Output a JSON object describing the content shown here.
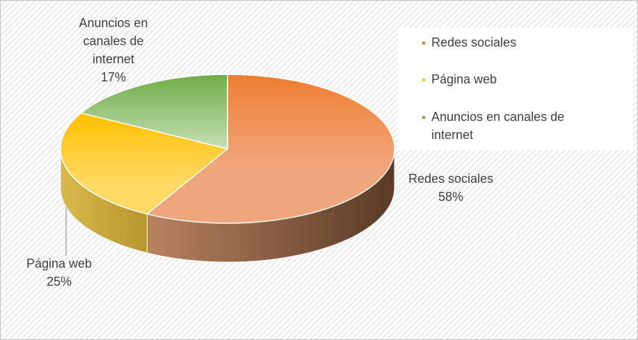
{
  "chart_data": {
    "type": "pie3d",
    "categories": [
      "Redes sociales",
      "Página web",
      "Anuncios en canales de internet"
    ],
    "values": [
      58,
      25,
      17
    ],
    "value_labels": [
      "58%",
      "25%",
      "17%"
    ],
    "colors": [
      "#ED7D31",
      "#FFC000",
      "#70AD47"
    ],
    "legend": "top-right"
  }
}
